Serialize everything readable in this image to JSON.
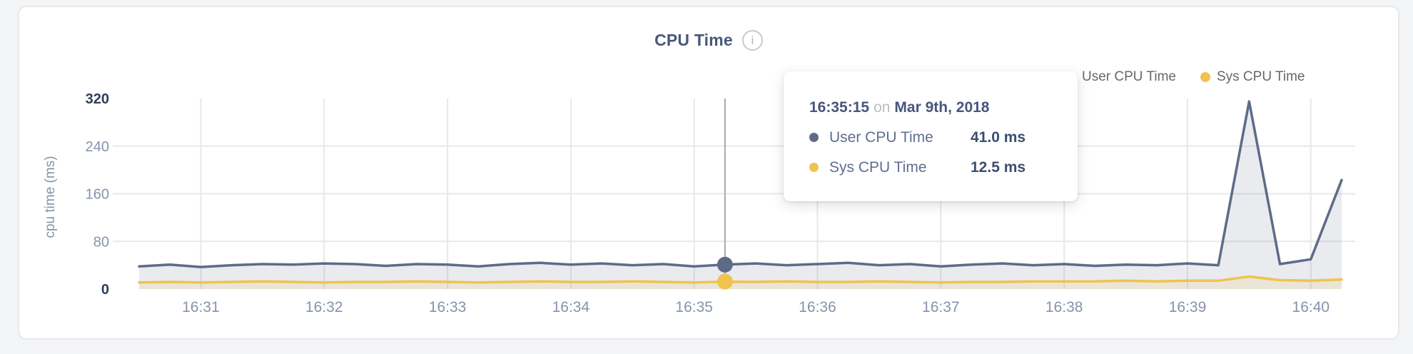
{
  "page": {
    "background_color": "#f4f5f6",
    "card_color": "#ffffff"
  },
  "header": {
    "title": "CPU Time",
    "info_glyph": "i"
  },
  "legend": {
    "items": [
      {
        "label": "User CPU Time",
        "color": "#5e6b88"
      },
      {
        "label": "Sys CPU Time",
        "color": "#f0c34e"
      }
    ]
  },
  "tooltip": {
    "time": "16:35:15",
    "connector": "on",
    "date": "Mar 9th, 2018",
    "rows": [
      {
        "label": "User CPU Time",
        "value": "41.0 ms",
        "color": "#5e6b88"
      },
      {
        "label": "Sys CPU Time",
        "value": "12.5 ms",
        "color": "#f0c34e"
      }
    ]
  },
  "chart_data": {
    "type": "line",
    "title": "CPU Time",
    "ylabel": "cpu time (ms)",
    "ylim": [
      0,
      320
    ],
    "y_ticks": [
      0,
      80,
      160,
      240,
      320
    ],
    "y_ticks_emphasized": [
      0,
      320
    ],
    "x_ticks": [
      "16:31",
      "16:32",
      "16:33",
      "16:34",
      "16:35",
      "16:36",
      "16:37",
      "16:38",
      "16:39",
      "16:40"
    ],
    "x_start_time": "16:30:30",
    "x_end_time": "16:40:15",
    "sample_interval_seconds": 15,
    "date": "Mar 9th, 2018",
    "grid": true,
    "legend_position": "top-right",
    "hover": {
      "index": 19,
      "time": "16:35:15",
      "user_value_ms": 41.0,
      "sys_value_ms": 12.5
    },
    "series": [
      {
        "name": "User CPU Time",
        "color": "#5e6b88",
        "fill": "rgba(101,114,141,0.14)",
        "values": [
          38,
          41,
          37,
          40,
          42,
          41,
          43,
          42,
          39,
          42,
          41,
          38,
          42,
          44,
          41,
          43,
          40,
          42,
          38,
          41,
          43,
          40,
          42,
          44,
          40,
          42,
          38,
          41,
          43,
          40,
          42,
          39,
          41,
          40,
          43,
          40,
          315,
          42,
          50,
          183
        ]
      },
      {
        "name": "Sys CPU Time",
        "color": "#f0c34e",
        "fill": "rgba(240,195,78,0.15)",
        "values": [
          11,
          12,
          11,
          12,
          13,
          12,
          11,
          12,
          12,
          13,
          12,
          11,
          12,
          13,
          12,
          12,
          13,
          12,
          11,
          12.5,
          12,
          13,
          12,
          12,
          13,
          12,
          11,
          12,
          12,
          13,
          13,
          13,
          14,
          13,
          14,
          14,
          21,
          15,
          14,
          16
        ]
      }
    ]
  }
}
